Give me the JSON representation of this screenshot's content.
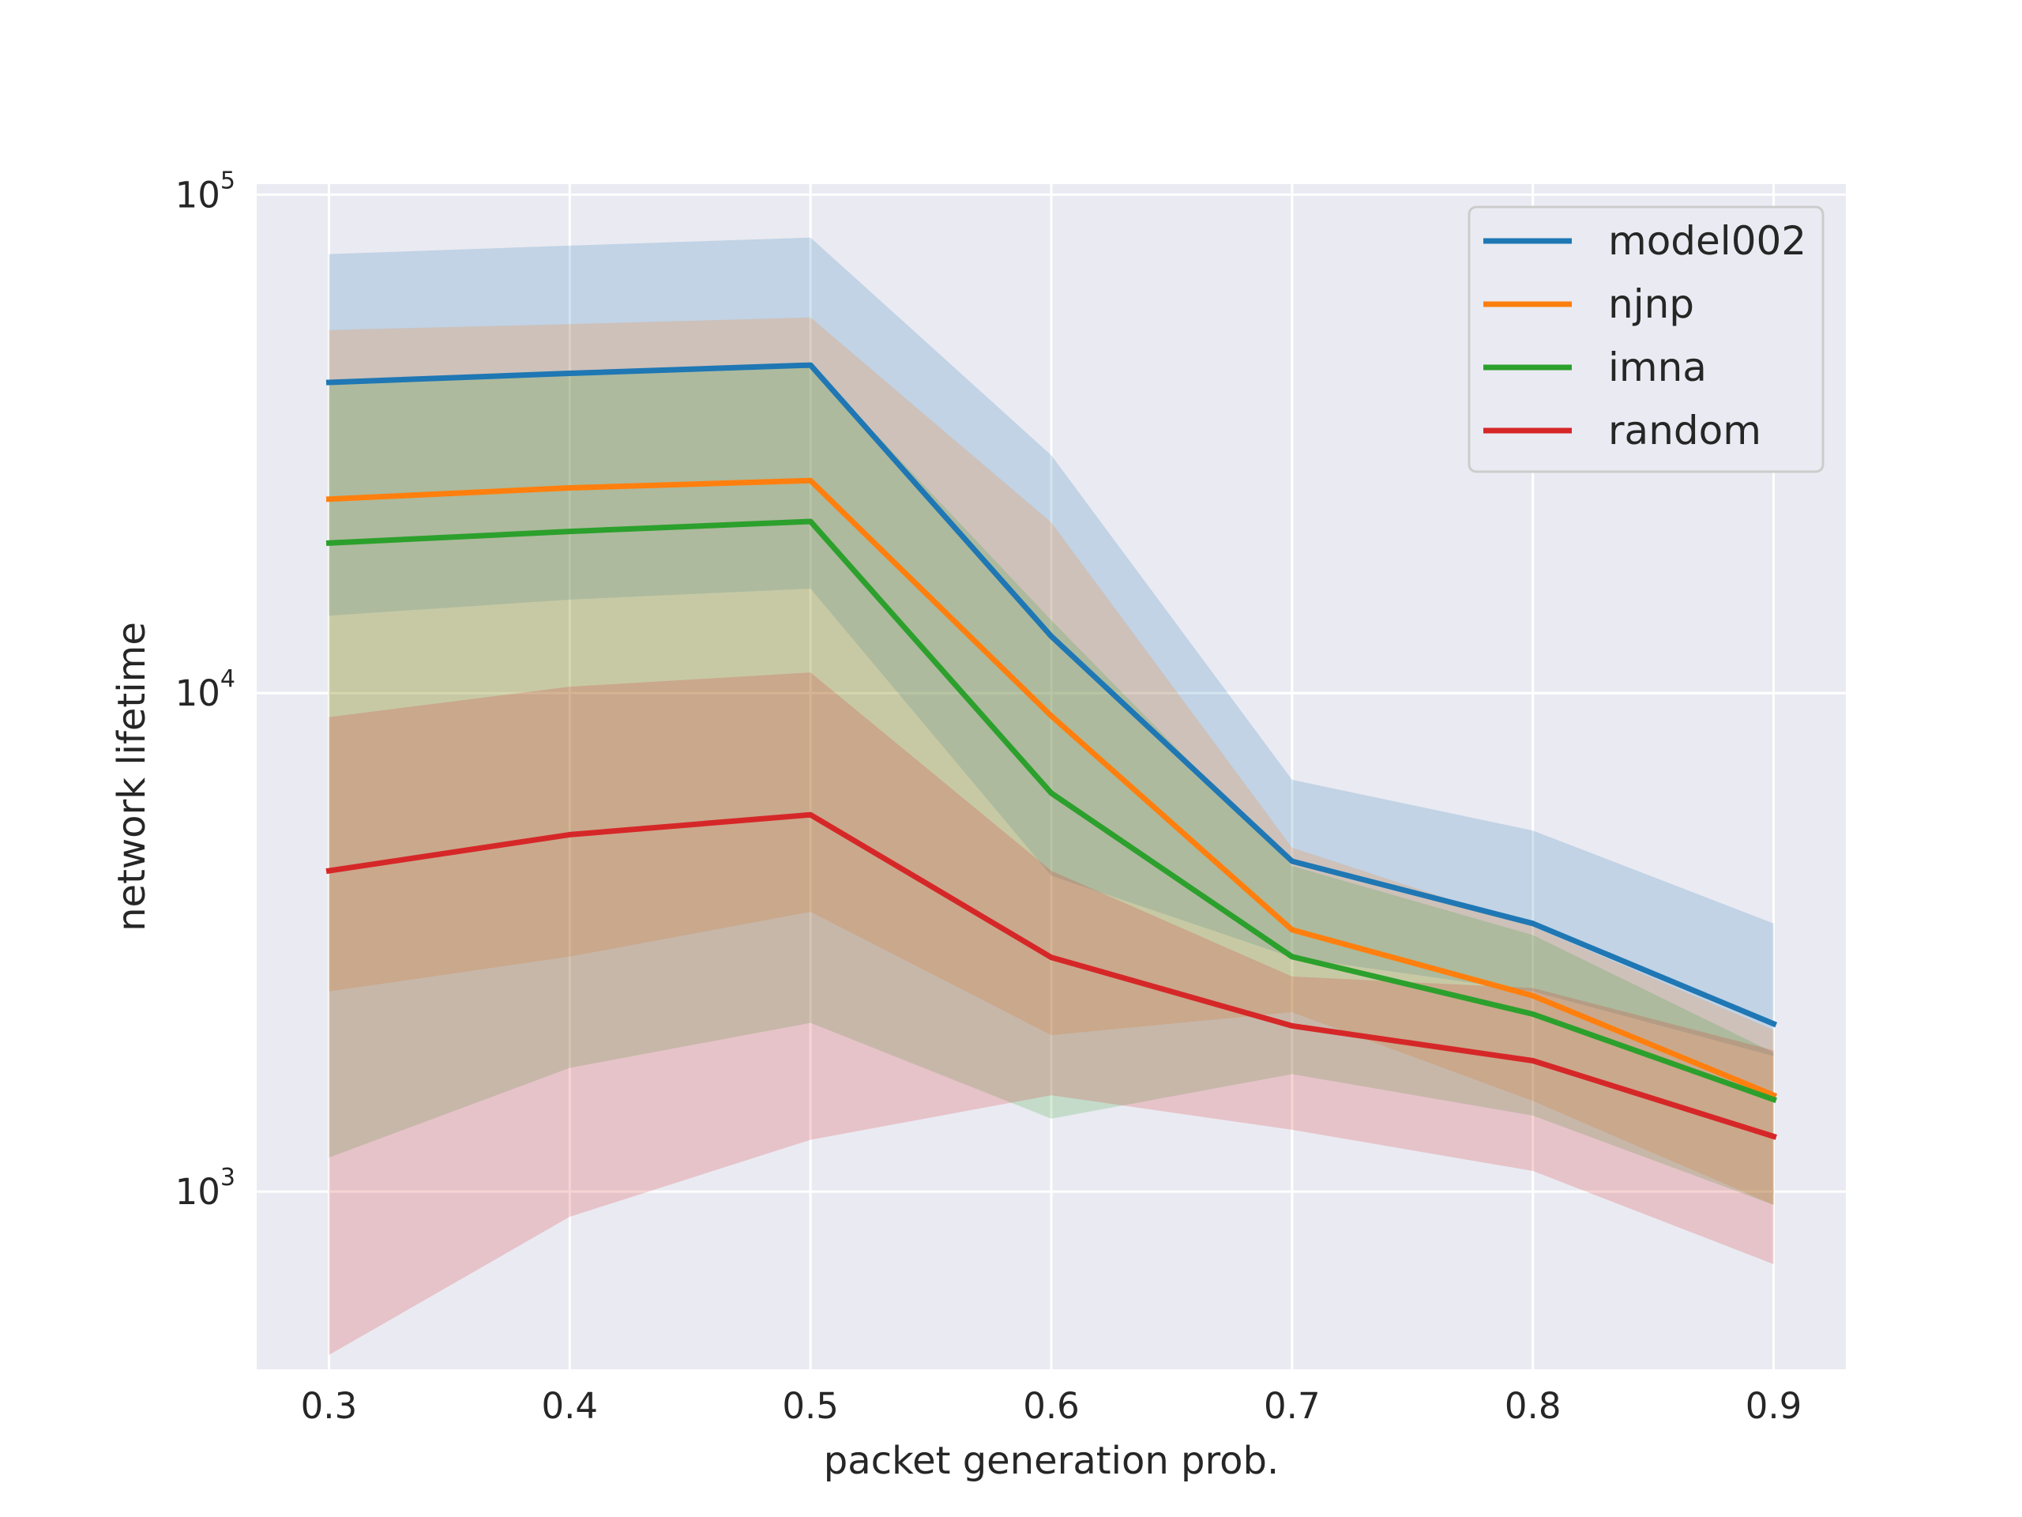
{
  "chart_data": {
    "type": "line",
    "title": "",
    "xlabel": "packet generation prob.",
    "ylabel": "network lifetime",
    "yscale": "log",
    "x": [
      0.3,
      0.4,
      0.5,
      0.6,
      0.7,
      0.8,
      0.9
    ],
    "x_ticks": [
      "0.3",
      "0.4",
      "0.5",
      "0.6",
      "0.7",
      "0.8",
      "0.9"
    ],
    "xlim": [
      0.27,
      0.93
    ],
    "ylim": [
      440,
      105000
    ],
    "y_ticks": [
      {
        "value": 1000,
        "base": "10",
        "exp": "3"
      },
      {
        "value": 10000,
        "base": "10",
        "exp": "4"
      },
      {
        "value": 100000,
        "base": "10",
        "exp": "5"
      }
    ],
    "grid": true,
    "legend_position": "upper right",
    "series": [
      {
        "name": "model002",
        "color": "#1f77b4",
        "values": [
          42000,
          43800,
          45500,
          13000,
          4600,
          3450,
          2170
        ],
        "upper": [
          76000,
          79000,
          82000,
          30000,
          6700,
          5300,
          3450
        ],
        "lower": [
          14300,
          15400,
          16200,
          4300,
          2950,
          2520,
          1870
        ]
      },
      {
        "name": "njnp",
        "color": "#ff7f0e",
        "values": [
          24500,
          25800,
          26700,
          9000,
          3350,
          2470,
          1560
        ],
        "upper": [
          53500,
          55000,
          56700,
          22000,
          4900,
          3400,
          2110
        ],
        "lower": [
          2520,
          2960,
          3640,
          2060,
          2290,
          1520,
          940
        ]
      },
      {
        "name": "imna",
        "color": "#2ca02c",
        "values": [
          20000,
          21100,
          22100,
          6300,
          2960,
          2270,
          1530
        ],
        "upper": [
          41500,
          43800,
          45500,
          14000,
          4500,
          3270,
          1900
        ],
        "lower": [
          1170,
          1770,
          2180,
          1400,
          1720,
          1420,
          940
        ]
      },
      {
        "name": "random",
        "color": "#d62728",
        "values": [
          4400,
          5200,
          5700,
          2950,
          2150,
          1830,
          1290
        ],
        "upper": [
          8950,
          10300,
          11000,
          4400,
          2700,
          2560,
          1920
        ],
        "lower": [
          470,
          890,
          1270,
          1560,
          1330,
          1100,
          715
        ]
      }
    ]
  }
}
